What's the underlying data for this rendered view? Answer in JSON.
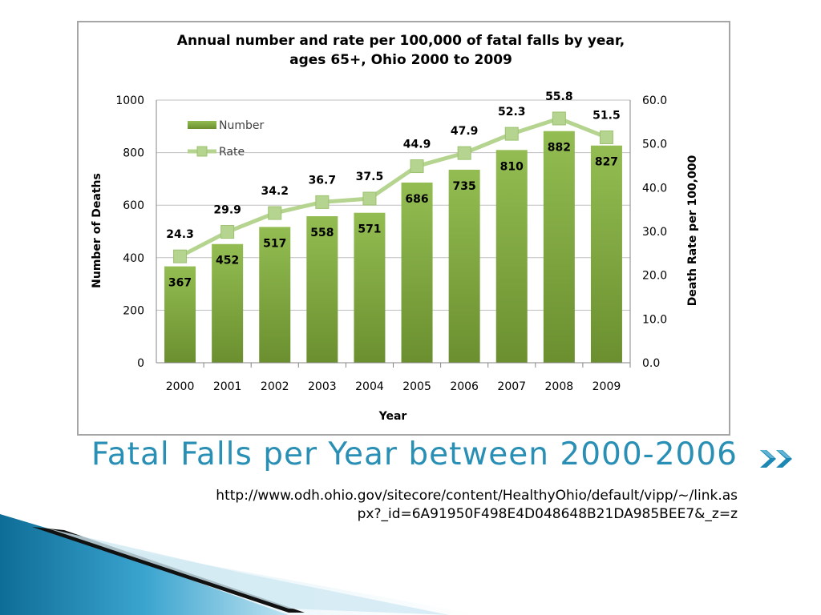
{
  "slide": {
    "title": "Fatal Falls per Year between 2000-2006",
    "source_line1": "http://www.odh.ohio.gov/sitecore/content/HealthyOhio/default/vipp/~/link.as",
    "source_line2": "px?_id=6A91950F498E4D048648B21DA985BEE7&_z=z",
    "next_icon": "double-chevron-right-icon",
    "colors": {
      "title": "#2a8fb5",
      "bar": "#8ab34a",
      "line": "#b5d48f",
      "accent": "#1e88b4"
    }
  },
  "chart_data": {
    "type": "bar",
    "title_line1": "Annual number and rate per 100,000 of fatal falls by year,",
    "title_line2": "ages 65+, Ohio 2000 to 2009",
    "xlabel": "Year",
    "ylabel": "Number of Deaths",
    "y2label": "Death Rate per 100,000",
    "categories": [
      "2000",
      "2001",
      "2002",
      "2003",
      "2004",
      "2005",
      "2006",
      "2007",
      "2008",
      "2009"
    ],
    "series": [
      {
        "name": "Number",
        "type": "bar",
        "axis": "left",
        "values": [
          367,
          452,
          517,
          558,
          571,
          686,
          735,
          810,
          882,
          827
        ]
      },
      {
        "name": "Rate",
        "type": "line",
        "axis": "right",
        "values": [
          24.3,
          29.9,
          34.2,
          36.7,
          37.5,
          44.9,
          47.9,
          52.3,
          55.8,
          51.5
        ]
      }
    ],
    "ylim": [
      0,
      1000
    ],
    "y2lim": [
      0,
      60
    ],
    "yticks": [
      "0",
      "200",
      "400",
      "600",
      "800",
      "1000"
    ],
    "y2ticks": [
      "0.0",
      "10.0",
      "20.0",
      "30.0",
      "40.0",
      "50.0",
      "60.0"
    ],
    "grid": true,
    "legend": "top-left"
  }
}
